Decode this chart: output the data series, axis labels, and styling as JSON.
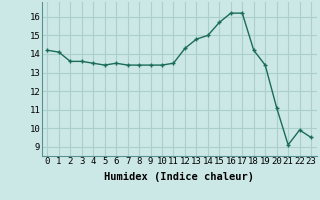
{
  "x": [
    0,
    1,
    2,
    3,
    4,
    5,
    6,
    7,
    8,
    9,
    10,
    11,
    12,
    13,
    14,
    15,
    16,
    17,
    18,
    19,
    20,
    21,
    22,
    23
  ],
  "y": [
    14.2,
    14.1,
    13.6,
    13.6,
    13.5,
    13.4,
    13.5,
    13.4,
    13.4,
    13.4,
    13.4,
    13.5,
    14.3,
    14.8,
    15.0,
    15.7,
    16.2,
    16.2,
    14.2,
    13.4,
    11.1,
    9.1,
    9.9,
    9.5
  ],
  "xlabel": "Humidex (Indice chaleur)",
  "xlim": [
    -0.5,
    23.5
  ],
  "ylim": [
    8.5,
    16.8
  ],
  "yticks": [
    9,
    10,
    11,
    12,
    13,
    14,
    15,
    16
  ],
  "xticks": [
    0,
    1,
    2,
    3,
    4,
    5,
    6,
    7,
    8,
    9,
    10,
    11,
    12,
    13,
    14,
    15,
    16,
    17,
    18,
    19,
    20,
    21,
    22,
    23
  ],
  "line_color": "#1a6b5a",
  "marker": "+",
  "bg_color": "#cce8e6",
  "grid_color": "#aacfcd",
  "axis_label_fontsize": 7.5,
  "tick_fontsize": 6.5
}
